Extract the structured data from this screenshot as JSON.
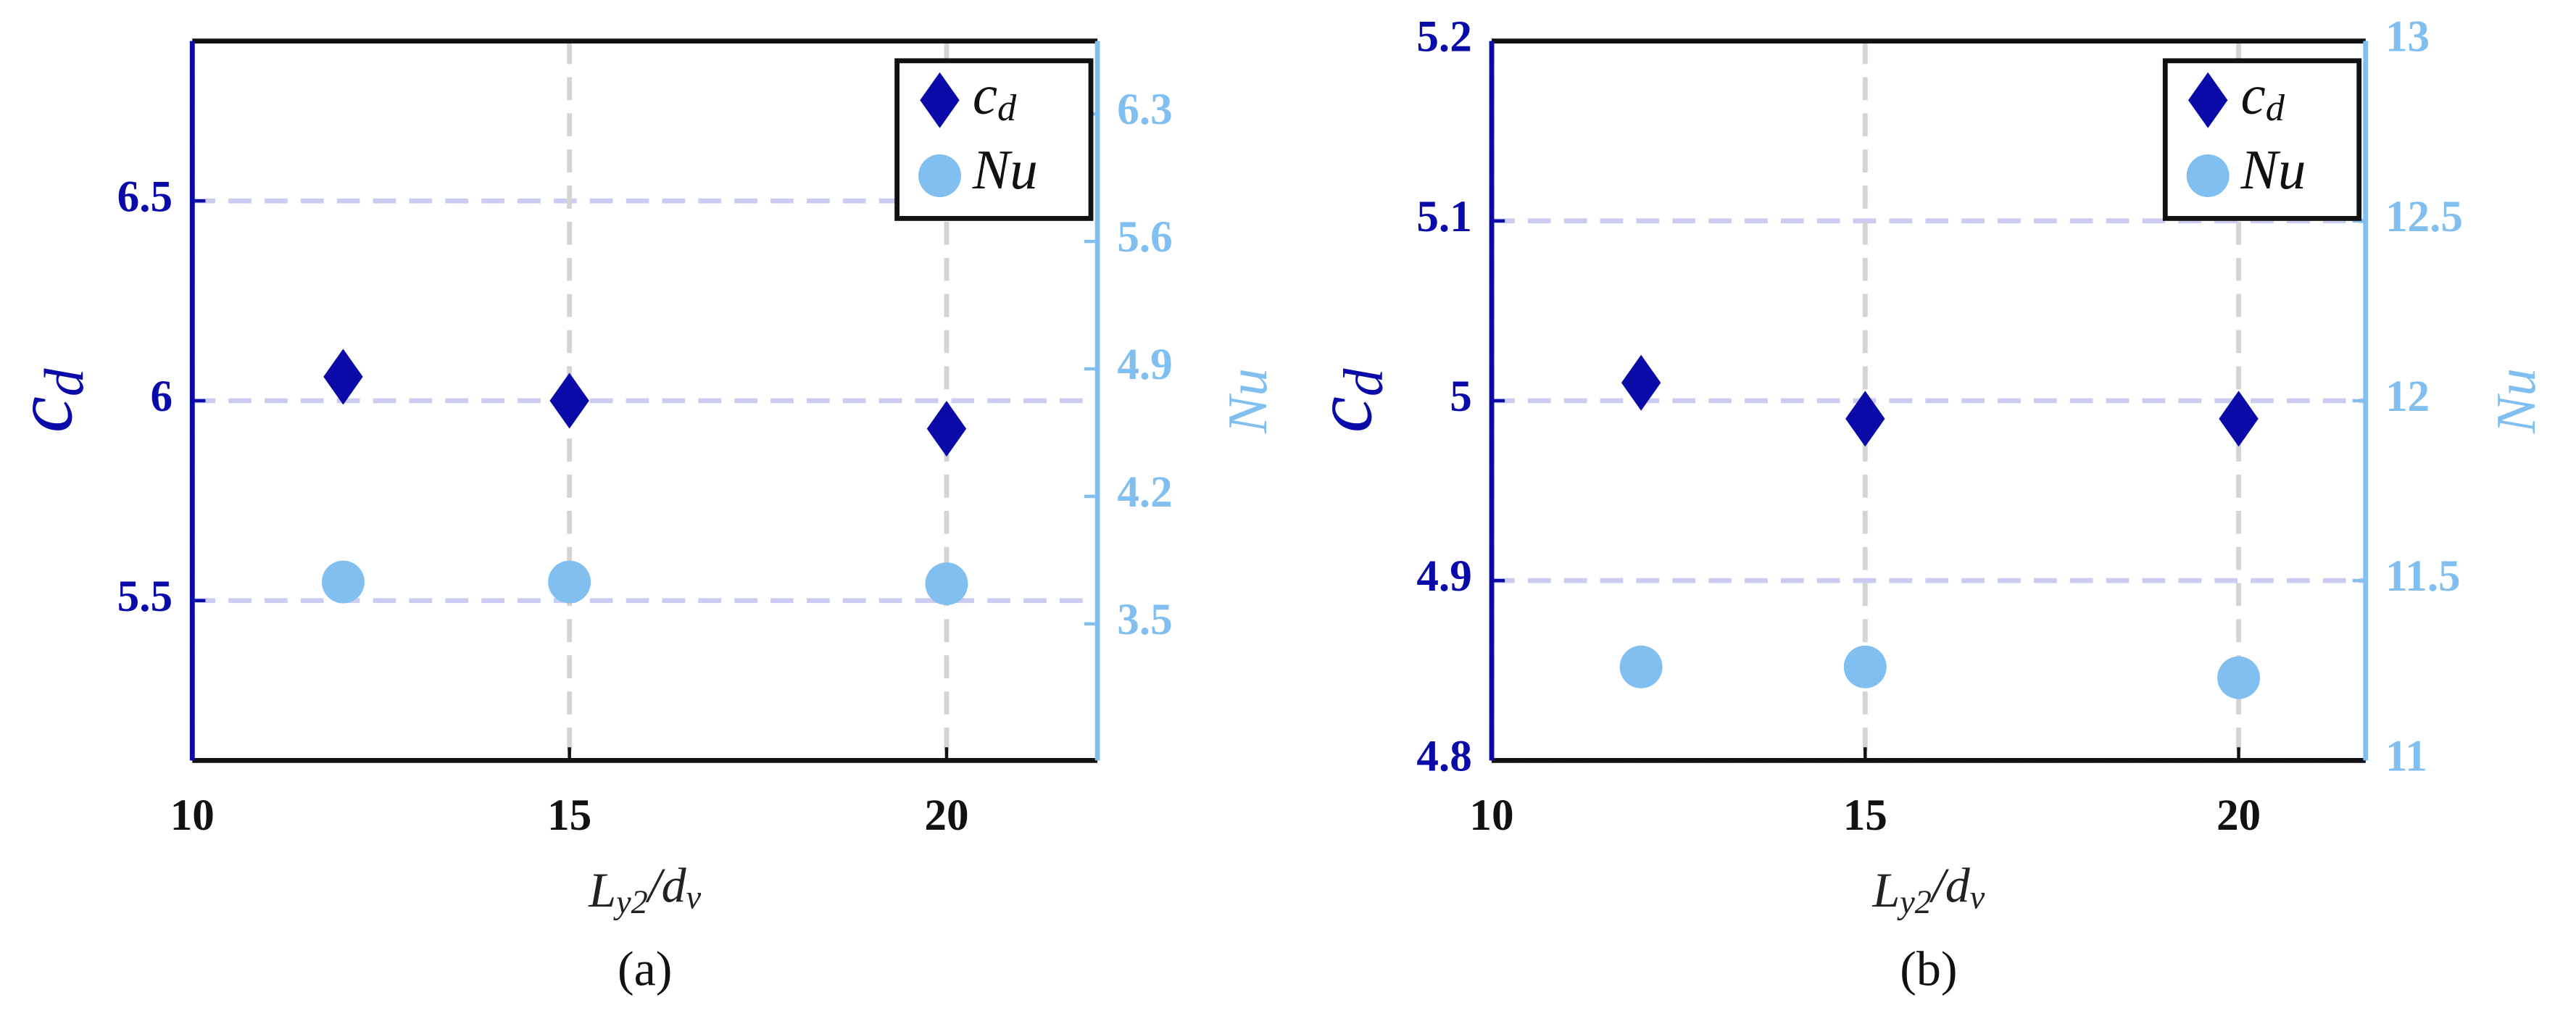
{
  "chart_data": [
    {
      "type": "scatter",
      "subplot_label": "(a)",
      "x_label": "L_{y2}/d_v",
      "y_label": "c_d",
      "y2_label": "Nu",
      "xlim": [
        10,
        22
      ],
      "xticks": [
        10,
        15,
        20
      ],
      "ylim": [
        5.1,
        6.9
      ],
      "yticks": [
        5.5,
        6,
        6.5
      ],
      "y2lim": [
        2.75,
        6.7
      ],
      "y2ticks": [
        3.5,
        4.2,
        4.9,
        5.6,
        6.3
      ],
      "grid": true,
      "legend": "upper right",
      "x": [
        12,
        15,
        20
      ],
      "series": [
        {
          "name": "c_d",
          "color": "#0a0aa8",
          "marker": "diamond",
          "values": [
            6.06,
            6.0,
            5.93
          ]
        },
        {
          "name": "Nu",
          "color": "#80bff0",
          "marker": "circle",
          "axis": "y2",
          "values": [
            3.73,
            3.73,
            3.72
          ]
        }
      ]
    },
    {
      "type": "scatter",
      "subplot_label": "(b)",
      "x_label": "L_{y2}/d_v",
      "y_label": "c_d",
      "y2_label": "Nu",
      "xlim": [
        10,
        21.7
      ],
      "xticks": [
        10,
        15,
        20
      ],
      "ylim": [
        4.8,
        5.2
      ],
      "yticks": [
        4.8,
        4.9,
        5,
        5.1,
        5.2
      ],
      "y2lim": [
        11,
        13
      ],
      "y2ticks": [
        11,
        11.5,
        12,
        12.5,
        13
      ],
      "grid": true,
      "legend": "upper right",
      "x": [
        12,
        15,
        20
      ],
      "series": [
        {
          "name": "c_d",
          "color": "#0a0aa8",
          "marker": "diamond",
          "values": [
            5.01,
            4.99,
            4.99
          ]
        },
        {
          "name": "Nu",
          "color": "#80bff0",
          "marker": "circle",
          "axis": "y2",
          "values": [
            11.26,
            11.26,
            11.23
          ]
        }
      ]
    }
  ]
}
